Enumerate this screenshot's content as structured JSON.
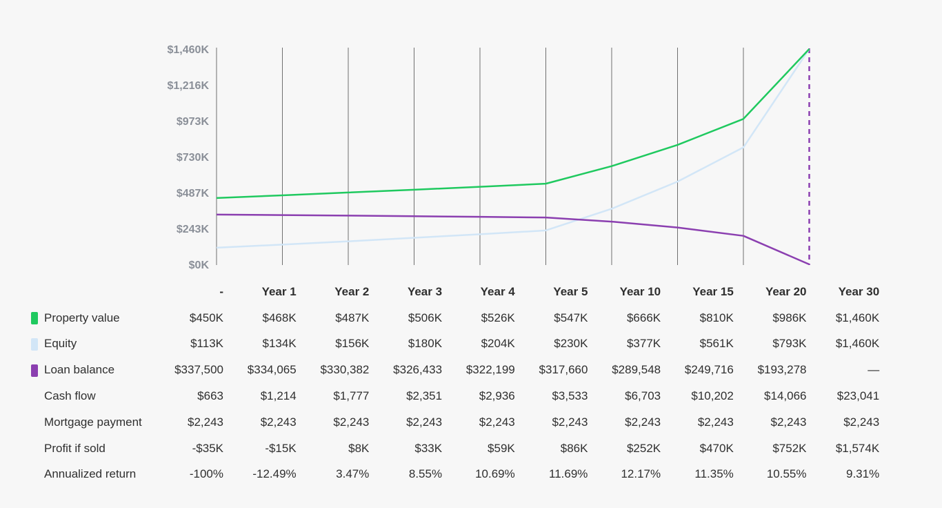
{
  "chart_data": {
    "type": "line",
    "categories": [
      "-",
      "Year 1",
      "Year 2",
      "Year 3",
      "Year 4",
      "Year 5",
      "Year 10",
      "Year 15",
      "Year 20",
      "Year 30"
    ],
    "y_ticks": [
      "$0K",
      "$243K",
      "$487K",
      "$730K",
      "$973K",
      "$1,216K",
      "$1,460K"
    ],
    "ylim": [
      0,
      1460
    ],
    "series": [
      {
        "name": "Property value",
        "color": "#1fc95f",
        "values": [
          450,
          468,
          487,
          506,
          526,
          547,
          666,
          810,
          986,
          1460
        ]
      },
      {
        "name": "Equity",
        "color": "#d2e6f7",
        "values": [
          113,
          134,
          156,
          180,
          204,
          230,
          377,
          561,
          793,
          1460
        ]
      },
      {
        "name": "Loan balance",
        "color": "#8b3fb0",
        "values": [
          337.5,
          334.065,
          330.382,
          326.433,
          322.199,
          317.66,
          289.548,
          249.716,
          193.278,
          0
        ]
      }
    ],
    "table": {
      "rows": [
        {
          "label": "Property value",
          "swatch": "#1fc95f",
          "cells": [
            "$450K",
            "$468K",
            "$487K",
            "$506K",
            "$526K",
            "$547K",
            "$666K",
            "$810K",
            "$986K",
            "$1,460K"
          ]
        },
        {
          "label": "Equity",
          "swatch": "#d2e6f7",
          "cells": [
            "$113K",
            "$134K",
            "$156K",
            "$180K",
            "$204K",
            "$230K",
            "$377K",
            "$561K",
            "$793K",
            "$1,460K"
          ]
        },
        {
          "label": "Loan balance",
          "swatch": "#8b3fb0",
          "cells": [
            "$337,500",
            "$334,065",
            "$330,382",
            "$326,433",
            "$322,199",
            "$317,660",
            "$289,548",
            "$249,716",
            "$193,278",
            "—"
          ]
        },
        {
          "label": "Cash flow",
          "swatch": "",
          "cells": [
            "$663",
            "$1,214",
            "$1,777",
            "$2,351",
            "$2,936",
            "$3,533",
            "$6,703",
            "$10,202",
            "$14,066",
            "$23,041"
          ]
        },
        {
          "label": "Mortgage payment",
          "swatch": "",
          "cells": [
            "$2,243",
            "$2,243",
            "$2,243",
            "$2,243",
            "$2,243",
            "$2,243",
            "$2,243",
            "$2,243",
            "$2,243",
            "$2,243"
          ]
        },
        {
          "label": "Profit if sold",
          "swatch": "",
          "cells": [
            "-$35K",
            "-$15K",
            "$8K",
            "$33K",
            "$59K",
            "$86K",
            "$252K",
            "$470K",
            "$752K",
            "$1,574K"
          ]
        },
        {
          "label": "Annualized return",
          "swatch": "",
          "cells": [
            "-100%",
            "-12.49%",
            "3.47%",
            "8.55%",
            "10.69%",
            "11.69%",
            "12.17%",
            "11.35%",
            "10.55%",
            "9.31%"
          ]
        }
      ]
    }
  }
}
